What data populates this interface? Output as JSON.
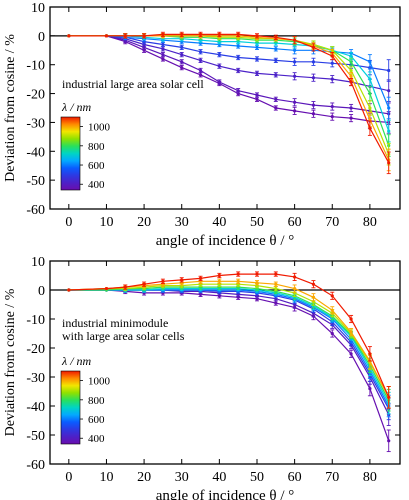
{
  "figure_title": "",
  "cbar_ticks": [
    1000,
    800,
    600,
    400
  ],
  "cbar_range": [
    340,
    1100
  ],
  "colors": {
    "axis": "#000000",
    "frame": "#000000",
    "background": "#ffffff"
  },
  "chart_data": [
    {
      "type": "line",
      "panel_label": "industrial large area solar cell",
      "panel_label_2": "",
      "legend_title": "λ / nm",
      "xlabel": "angle of incidence θ / °",
      "ylabel": "Deviation from cosine / %",
      "xlim": [
        -5,
        88
      ],
      "ylim": [
        -60,
        10
      ],
      "xticks": [
        0,
        10,
        20,
        30,
        40,
        50,
        60,
        70,
        80
      ],
      "yticks": [
        10,
        0,
        -10,
        -20,
        -30,
        -40,
        -50,
        -60
      ],
      "x": [
        0,
        10,
        15,
        20,
        25,
        30,
        35,
        40,
        45,
        50,
        55,
        60,
        65,
        70,
        75,
        80,
        85
      ],
      "error_bars": true,
      "series": [
        {
          "wl": 350,
          "values": [
            0,
            0,
            -2,
            -5,
            -8,
            -11,
            -13.5,
            -16.5,
            -20,
            -22,
            -25,
            -26,
            -27,
            -28,
            -28.5,
            -29.5,
            -30
          ]
        },
        {
          "wl": 380,
          "values": [
            0,
            0,
            -1.5,
            -4,
            -6.5,
            -9,
            -12,
            -16,
            -19,
            -20.5,
            -22,
            -23,
            -24,
            -24.5,
            -25,
            -26,
            -27
          ]
        },
        {
          "wl": 420,
          "values": [
            0,
            0,
            -1,
            -3,
            -4.5,
            -6.5,
            -8.5,
            -10.5,
            -12,
            -13,
            -13.5,
            -14,
            -14.5,
            -15,
            -16,
            -17.5,
            -19
          ]
        },
        {
          "wl": 500,
          "values": [
            0,
            0,
            -0.5,
            -2,
            -3,
            -4,
            -5.5,
            -6.5,
            -7.5,
            -8,
            -8.5,
            -9,
            -9,
            -9.5,
            -10,
            -11,
            -12
          ]
        },
        {
          "wl": 600,
          "values": [
            0,
            0,
            -0.5,
            -1,
            -1.5,
            -2,
            -2.5,
            -3,
            -3.5,
            -4,
            -4.5,
            -5,
            -5,
            -5.5,
            -6,
            -9,
            -25
          ]
        },
        {
          "wl": 700,
          "values": [
            0,
            0,
            0,
            -0.5,
            -1,
            -1,
            -1.5,
            -2,
            -2,
            -2.5,
            -2.5,
            -3,
            -3.5,
            -5,
            -7,
            -15,
            -33
          ]
        },
        {
          "wl": 800,
          "values": [
            0,
            0,
            0,
            0,
            0,
            -0.5,
            -0.5,
            -1,
            -1,
            -1.5,
            -1.5,
            -2,
            -3,
            -5,
            -9,
            -20,
            -38
          ]
        },
        {
          "wl": 900,
          "values": [
            0,
            0,
            0,
            0,
            0,
            0,
            0,
            -0.5,
            -0.5,
            -1,
            -1,
            -1.5,
            -3,
            -5,
            -12,
            -25,
            -41
          ]
        },
        {
          "wl": 1000,
          "values": [
            0,
            0,
            0,
            0,
            0,
            0,
            0,
            0,
            0,
            -0.5,
            -1,
            -1.5,
            -3.5,
            -6,
            -14,
            -29,
            -43
          ]
        },
        {
          "wl": 1100,
          "values": [
            0,
            0,
            0,
            0,
            0.5,
            0.5,
            0.5,
            0.5,
            0.5,
            0,
            -0.5,
            -1.5,
            -4,
            -7,
            -16,
            -32,
            -44
          ]
        }
      ]
    },
    {
      "type": "line",
      "panel_label": "industrial minimodule",
      "panel_label_2": "with large area solar cells",
      "legend_title": "λ / nm",
      "xlabel": "angle of incidence θ / °",
      "ylabel": "Deviation from cosine / %",
      "xlim": [
        -5,
        88
      ],
      "ylim": [
        -60,
        10
      ],
      "xticks": [
        0,
        10,
        20,
        30,
        40,
        50,
        60,
        70,
        80
      ],
      "yticks": [
        10,
        0,
        -10,
        -20,
        -30,
        -40,
        -50,
        -60
      ],
      "x": [
        0,
        10,
        15,
        20,
        25,
        30,
        35,
        40,
        45,
        50,
        55,
        60,
        65,
        70,
        75,
        80,
        85
      ],
      "error_bars": true,
      "series": [
        {
          "wl": 350,
          "values": [
            0,
            0,
            -0.5,
            -1,
            -1,
            -1,
            -1.5,
            -2,
            -2.5,
            -3,
            -4.5,
            -6,
            -9,
            -15,
            -22,
            -34,
            -52
          ]
        },
        {
          "wl": 400,
          "values": [
            0,
            0,
            0,
            0,
            0,
            -0.5,
            -0.5,
            -1,
            -1.5,
            -2,
            -3,
            -5,
            -8,
            -12,
            -19,
            -30,
            -43
          ]
        },
        {
          "wl": 500,
          "values": [
            0,
            0,
            0,
            0,
            0,
            0,
            0,
            -0.5,
            -0.5,
            -1,
            -2,
            -3.5,
            -6.5,
            -11,
            -18,
            -29,
            -41
          ]
        },
        {
          "wl": 600,
          "values": [
            0,
            0,
            0,
            0,
            0,
            0,
            0,
            0,
            0,
            -0.5,
            -1.5,
            -3,
            -6,
            -10,
            -17,
            -28,
            -40
          ]
        },
        {
          "wl": 700,
          "values": [
            0,
            0,
            0,
            0,
            0.5,
            0.5,
            0.5,
            0.5,
            0.5,
            0,
            -1,
            -2.5,
            -5.5,
            -9.5,
            -16,
            -27,
            -39
          ]
        },
        {
          "wl": 800,
          "values": [
            0,
            0,
            0.5,
            0.5,
            1,
            1,
            1,
            1,
            1,
            0.5,
            -0.5,
            -2,
            -5,
            -9,
            -15.5,
            -26,
            -38
          ]
        },
        {
          "wl": 900,
          "values": [
            0,
            0.5,
            0.5,
            1,
            1.5,
            1.5,
            2,
            2,
            2,
            1.5,
            0.5,
            -1,
            -4,
            -8,
            -15,
            -25,
            -37
          ]
        },
        {
          "wl": 1000,
          "values": [
            0,
            0.5,
            1,
            1.5,
            2,
            2.5,
            3,
            3,
            3,
            2.5,
            2,
            0.5,
            -2.5,
            -7,
            -14.5,
            -24.5,
            -37
          ]
        },
        {
          "wl": 1100,
          "values": [
            0,
            0.5,
            1,
            2,
            3,
            3.5,
            4,
            5,
            5.5,
            5.5,
            5.5,
            4.5,
            2,
            -2,
            -10,
            -22,
            -37
          ]
        }
      ]
    }
  ]
}
